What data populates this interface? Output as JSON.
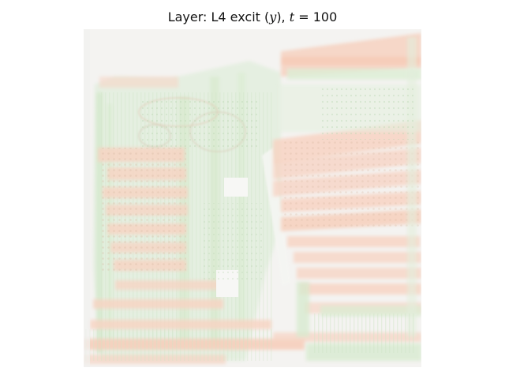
{
  "title": {
    "prefix": "Layer: L4 excit (",
    "var": "y",
    "mid": "), ",
    "t_symbol": "t",
    "t_equals": " = 100"
  },
  "colors": {
    "background": "#f3f2f0",
    "excit_red": "#f6c7b3",
    "excit_green": "#d8ecd2"
  }
}
